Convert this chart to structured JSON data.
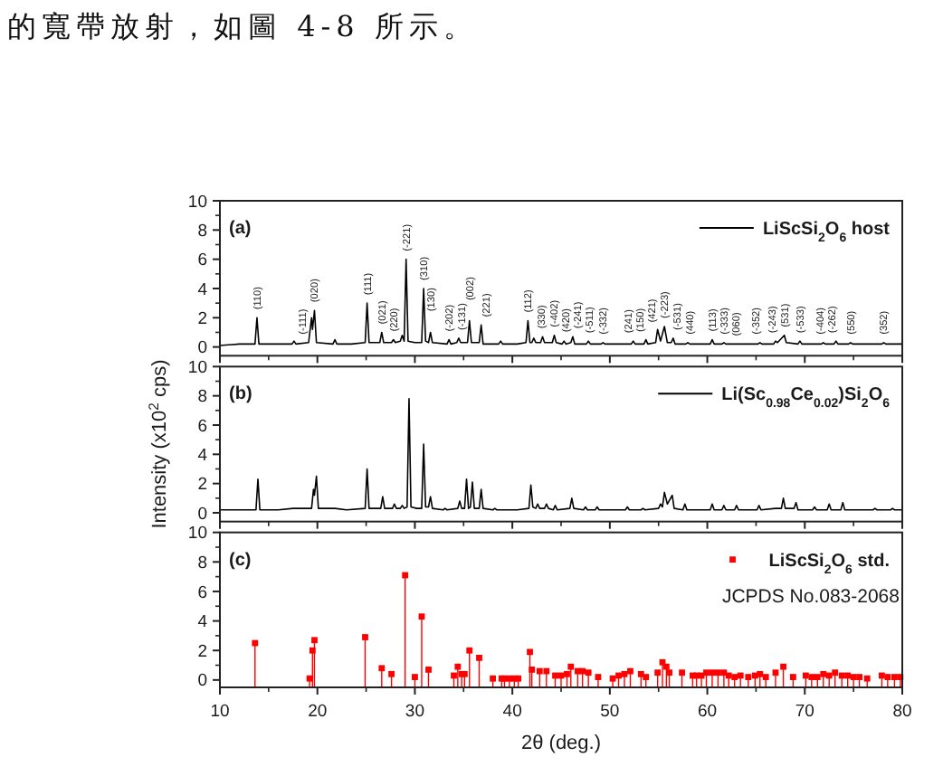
{
  "chart_data": [
    {
      "type": "other",
      "annotations": [
        "的寬帶放射，如圖 4-8 所示。"
      ]
    },
    {
      "type": "line",
      "xlim": [
        10,
        80
      ],
      "xticks": [
        10,
        20,
        30,
        40,
        50,
        60,
        70,
        80
      ],
      "ylim": [
        -0.6,
        10
      ],
      "yticks": [
        0,
        2,
        4,
        6,
        8,
        10
      ],
      "tick_labels": "y",
      "legend": "top right",
      "series": [
        {
          "name": "LiScSi$_{2}$O$_{6}$ host",
          "color": "#000000",
          "x": [
            10,
            12,
            13.6,
            13.8,
            14.0,
            15.5,
            17.4,
            17.6,
            17.8,
            19.1,
            19.4,
            19.5,
            19.7,
            19.9,
            21.6,
            21.8,
            22.0,
            23.5,
            24.9,
            25.1,
            25.3,
            26.4,
            26.6,
            26.8,
            27.6,
            27.8,
            28.0,
            28.5,
            28.7,
            28.9,
            29.1,
            29.3,
            30.0,
            30.7,
            30.9,
            31.1,
            31.4,
            31.6,
            31.8,
            33.3,
            33.5,
            33.7,
            34.3,
            34.5,
            34.7,
            35.4,
            35.6,
            35.8,
            36.6,
            36.8,
            37.0,
            38.6,
            38.8,
            39.0,
            40.5,
            41.4,
            41.6,
            41.8,
            42.0,
            42.2,
            42.4,
            42.9,
            43.1,
            43.3,
            44.1,
            44.3,
            44.5,
            45.1,
            45.3,
            45.5,
            46.0,
            46.2,
            46.4,
            47.6,
            47.8,
            48.0,
            49.1,
            49.3,
            49.5,
            51.0,
            52.2,
            52.4,
            52.6,
            53.5,
            53.7,
            53.9,
            54.7,
            54.9,
            55.2,
            55.6,
            55.9,
            56.3,
            56.5,
            56.7,
            57.8,
            58.0,
            58.2,
            60.3,
            60.5,
            60.7,
            61.5,
            61.7,
            61.9,
            63.5,
            65.2,
            65.4,
            65.6,
            66.8,
            67.0,
            67.2,
            67.9,
            68.1,
            69.3,
            69.5,
            69.7,
            71.7,
            71.9,
            72.1,
            73.0,
            73.2,
            73.4,
            74.5,
            74.7,
            74.9,
            76.5,
            77.9,
            78.1,
            78.3,
            80
          ],
          "values": [
            0.1,
            0.2,
            0.2,
            2.0,
            0.2,
            0.2,
            0.2,
            0.4,
            0.2,
            0.3,
            2.0,
            1.2,
            2.5,
            0.3,
            0.2,
            0.5,
            0.2,
            0.2,
            0.3,
            3.0,
            0.3,
            0.3,
            1.0,
            0.3,
            0.3,
            0.5,
            0.3,
            0.4,
            0.8,
            0.4,
            6.0,
            0.4,
            0.3,
            0.3,
            4.0,
            0.4,
            0.3,
            1.0,
            0.3,
            0.2,
            0.5,
            0.2,
            0.3,
            0.6,
            0.3,
            0.3,
            1.8,
            0.3,
            0.3,
            1.5,
            0.2,
            0.2,
            0.4,
            0.2,
            0.2,
            0.3,
            1.8,
            0.3,
            0.3,
            0.6,
            0.3,
            0.3,
            0.7,
            0.3,
            0.3,
            0.8,
            0.3,
            0.2,
            0.4,
            0.2,
            0.3,
            0.7,
            0.2,
            0.2,
            0.4,
            0.2,
            0.2,
            0.3,
            0.2,
            0.2,
            0.2,
            0.4,
            0.2,
            0.2,
            0.5,
            0.2,
            0.3,
            1.2,
            0.4,
            1.4,
            0.3,
            0.3,
            0.6,
            0.2,
            0.2,
            0.3,
            0.2,
            0.2,
            0.5,
            0.2,
            0.2,
            0.3,
            0.2,
            0.2,
            0.2,
            0.3,
            0.2,
            0.2,
            0.4,
            0.3,
            0.8,
            0.3,
            0.2,
            0.4,
            0.2,
            0.2,
            0.3,
            0.2,
            0.2,
            0.4,
            0.2,
            0.2,
            0.3,
            0.2,
            0.2,
            0.2,
            0.3,
            0.2,
            0.2
          ]
        }
      ],
      "annotations": [
        "(a)",
        {
          "text": "(110)",
          "x": 13.8,
          "y": 2.0
        },
        {
          "text": "(-111)",
          "x": 18.5,
          "y": 0.3
        },
        {
          "text": "(020)",
          "x": 19.7,
          "y": 2.5
        },
        {
          "text": "(111)",
          "x": 25.1,
          "y": 3.0
        },
        {
          "text": "(021)",
          "x": 26.6,
          "y": 1.0
        },
        {
          "text": "(220)",
          "x": 27.8,
          "y": 0.5
        },
        {
          "text": "(-221)",
          "x": 29.1,
          "y": 6.0
        },
        {
          "text": "(310)",
          "x": 30.9,
          "y": 4.0
        },
        {
          "text": "(130)",
          "x": 31.6,
          "y": 1.0
        },
        {
          "text": "(-202)",
          "x": 33.5,
          "y": 0.5
        },
        {
          "text": "(-131)",
          "x": 34.8,
          "y": 0.3
        },
        {
          "text": "(002)",
          "x": 35.6,
          "y": 1.8
        },
        {
          "text": "(221)",
          "x": 37.3,
          "y": 0.2
        },
        {
          "text": "(112)",
          "x": 41.6,
          "y": 1.8
        },
        {
          "text": "(330)",
          "x": 43.0,
          "y": 0.5
        },
        {
          "text": "(-402)",
          "x": 44.3,
          "y": 0.8
        },
        {
          "text": "(420)",
          "x": 45.5,
          "y": 0.2
        },
        {
          "text": "(-241)",
          "x": 46.7,
          "y": 0.2
        },
        {
          "text": "(-511)",
          "x": 47.9,
          "y": 0.3
        },
        {
          "text": "(-332)",
          "x": 49.3,
          "y": 0.3
        },
        {
          "text": "(241)",
          "x": 51.9,
          "y": 0.2
        },
        {
          "text": "(150)",
          "x": 53.1,
          "y": 0.2
        },
        {
          "text": "(421)",
          "x": 54.3,
          "y": 0.3
        },
        {
          "text": "(-223)",
          "x": 55.6,
          "y": 1.4
        },
        {
          "text": "(-531)",
          "x": 56.9,
          "y": 0.2
        },
        {
          "text": "(440)",
          "x": 58.2,
          "y": 0.2
        },
        {
          "text": "(113)",
          "x": 60.5,
          "y": 0.5
        },
        {
          "text": "(-333)",
          "x": 61.7,
          "y": 0.3
        },
        {
          "text": "(060)",
          "x": 62.9,
          "y": 0.2
        },
        {
          "text": "(-352)",
          "x": 65.0,
          "y": 0.2
        },
        {
          "text": "(-243)",
          "x": 66.6,
          "y": 0.2
        },
        {
          "text": "(531)",
          "x": 67.9,
          "y": 0.8
        },
        {
          "text": "(-533)",
          "x": 69.5,
          "y": 0.4
        },
        {
          "text": "(-404)",
          "x": 71.6,
          "y": 0.2
        },
        {
          "text": "(-262)",
          "x": 72.8,
          "y": 0.2
        },
        {
          "text": "(550)",
          "x": 74.7,
          "y": 0.3
        },
        {
          "text": "(352)",
          "x": 78.1,
          "y": 0.3
        }
      ]
    },
    {
      "type": "line",
      "xlim": [
        10,
        80
      ],
      "xticks": [
        10,
        20,
        30,
        40,
        50,
        60,
        70,
        80
      ],
      "ylim": [
        -0.6,
        10
      ],
      "yticks": [
        0,
        2,
        4,
        6,
        8,
        10
      ],
      "tick_labels": "y",
      "legend": "top right",
      "ylabel": "Intensity (x10$^{2}$ cps)",
      "series": [
        {
          "name": "Li(Sc$_{0.98}$Ce$_{0.02}$)Si$_{2}$O$_{6}$",
          "color": "#000000",
          "x": [
            10,
            12,
            13.7,
            13.9,
            14.1,
            16.0,
            17.5,
            19.4,
            19.6,
            19.7,
            19.9,
            20.1,
            21.8,
            23.0,
            24.9,
            25.1,
            25.3,
            26.5,
            26.7,
            26.9,
            27.7,
            27.9,
            28.1,
            28.5,
            28.7,
            28.9,
            29.2,
            29.4,
            29.6,
            30.2,
            30.7,
            30.9,
            31.1,
            31.4,
            31.6,
            31.8,
            32.9,
            33.1,
            33.3,
            34.4,
            34.6,
            34.8,
            35.1,
            35.3,
            35.5,
            35.7,
            35.9,
            36.1,
            36.6,
            36.8,
            37.0,
            38.0,
            38.2,
            38.4,
            40.5,
            41.7,
            41.9,
            42.1,
            42.4,
            42.6,
            42.8,
            43.3,
            43.5,
            43.7,
            44.2,
            44.4,
            44.6,
            45.9,
            46.1,
            46.3,
            47.3,
            47.5,
            47.7,
            48.5,
            48.7,
            48.9,
            50.5,
            51.6,
            51.8,
            52.0,
            53.2,
            53.4,
            53.6,
            55.0,
            55.2,
            55.4,
            55.6,
            55.9,
            56.4,
            56.6,
            57.5,
            57.7,
            57.9,
            59.5,
            60.3,
            60.5,
            60.7,
            61.5,
            61.7,
            61.9,
            62.8,
            63.0,
            63.2,
            65.1,
            65.3,
            65.5,
            67.0,
            67.6,
            67.8,
            68.0,
            68.9,
            69.1,
            69.3,
            70.8,
            71.0,
            71.2,
            72.3,
            72.5,
            72.7,
            73.7,
            73.9,
            74.1,
            75.5,
            77.0,
            77.2,
            77.4,
            78.8,
            79.0,
            79.2,
            80
          ],
          "values": [
            0.2,
            0.2,
            0.2,
            2.3,
            0.2,
            0.2,
            0.3,
            0.3,
            1.6,
            1.2,
            2.5,
            0.3,
            0.3,
            0.2,
            0.3,
            3.0,
            0.3,
            0.3,
            1.1,
            0.3,
            0.3,
            0.6,
            0.3,
            0.3,
            0.5,
            0.3,
            0.4,
            7.8,
            0.4,
            0.3,
            0.3,
            4.7,
            0.4,
            0.4,
            1.1,
            0.3,
            0.2,
            0.3,
            0.2,
            0.3,
            0.8,
            0.3,
            0.3,
            2.3,
            0.3,
            0.4,
            2.1,
            0.3,
            0.3,
            1.6,
            0.3,
            0.2,
            0.3,
            0.2,
            0.2,
            0.3,
            1.9,
            0.4,
            0.3,
            0.6,
            0.3,
            0.3,
            0.6,
            0.3,
            0.2,
            0.5,
            0.2,
            0.3,
            1.0,
            0.3,
            0.2,
            0.4,
            0.2,
            0.2,
            0.4,
            0.2,
            0.2,
            0.2,
            0.4,
            0.2,
            0.2,
            0.3,
            0.2,
            0.3,
            0.6,
            0.4,
            1.4,
            0.6,
            1.2,
            0.3,
            0.2,
            0.6,
            0.2,
            0.2,
            0.2,
            0.6,
            0.2,
            0.2,
            0.5,
            0.2,
            0.2,
            0.5,
            0.2,
            0.2,
            0.5,
            0.2,
            0.3,
            0.3,
            1.0,
            0.3,
            0.3,
            0.7,
            0.2,
            0.2,
            0.4,
            0.2,
            0.2,
            0.6,
            0.2,
            0.2,
            0.7,
            0.2,
            0.2,
            0.2,
            0.3,
            0.2,
            0.2,
            0.3,
            0.2,
            0.2
          ]
        }
      ],
      "annotations": [
        "(b)"
      ]
    },
    {
      "type": "lollipop",
      "xlim": [
        10,
        80
      ],
      "xticks": [
        10,
        20,
        30,
        40,
        50,
        60,
        70,
        80
      ],
      "ylim": [
        -0.5,
        10
      ],
      "yticks": [
        0,
        2,
        4,
        6,
        8,
        10
      ],
      "legend": "top right",
      "marker": "square",
      "xlabel": "2θ (deg.)",
      "series": [
        {
          "name": "LiScSi$_{2}$O$_{6}$ std.",
          "color": "#ff0000",
          "x": [
            13.6,
            19.2,
            19.5,
            19.7,
            24.9,
            26.6,
            27.6,
            29.0,
            30.0,
            30.7,
            31.4,
            34.0,
            34.4,
            34.8,
            35.1,
            35.6,
            36.6,
            38.0,
            38.9,
            39.2,
            39.7,
            40.2,
            40.6,
            41.8,
            42.0,
            42.8,
            43.5,
            44.4,
            45.0,
            45.6,
            46.0,
            46.7,
            47.2,
            47.8,
            48.8,
            50.3,
            50.9,
            51.5,
            52.1,
            53.2,
            53.7,
            54.9,
            55.4,
            55.8,
            56.1,
            57.4,
            58.5,
            58.9,
            59.4,
            59.9,
            60.5,
            61.1,
            61.7,
            62.2,
            62.8,
            63.4,
            64.2,
            64.9,
            65.4,
            66.0,
            67.0,
            67.8,
            68.8,
            70.1,
            70.7,
            71.3,
            71.9,
            72.5,
            73.1,
            73.8,
            74.4,
            75.0,
            75.6,
            76.4,
            77.9,
            78.5,
            79.2,
            79.8
          ],
          "values": [
            2.5,
            0.1,
            2.0,
            2.7,
            2.9,
            0.8,
            0.4,
            7.1,
            0.2,
            4.3,
            0.7,
            0.3,
            0.9,
            0.4,
            0.4,
            2.0,
            1.5,
            0.1,
            0.1,
            0.1,
            0.1,
            0.1,
            0.1,
            1.9,
            0.7,
            0.6,
            0.6,
            0.3,
            0.3,
            0.4,
            0.9,
            0.6,
            0.6,
            0.5,
            0.2,
            0.1,
            0.3,
            0.4,
            0.6,
            0.4,
            0.2,
            0.5,
            1.2,
            0.9,
            0.5,
            0.5,
            0.3,
            0.3,
            0.3,
            0.5,
            0.5,
            0.5,
            0.5,
            0.3,
            0.2,
            0.3,
            0.2,
            0.3,
            0.4,
            0.2,
            0.5,
            0.9,
            0.2,
            0.3,
            0.2,
            0.2,
            0.4,
            0.3,
            0.5,
            0.3,
            0.3,
            0.2,
            0.2,
            0.1,
            0.3,
            0.2,
            0.2,
            0.2
          ]
        }
      ],
      "annotations": [
        "(c)",
        "JCPDS No.083-2068"
      ]
    }
  ]
}
